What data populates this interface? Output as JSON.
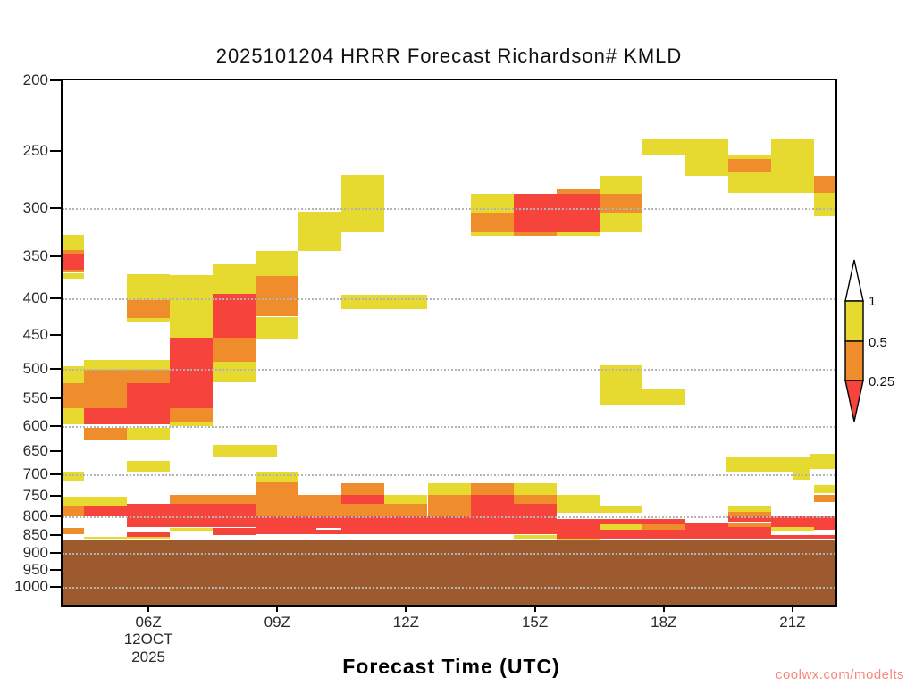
{
  "header": {
    "title": "2025101204 HRRR Forecast Richardson# KMLD"
  },
  "footer": {
    "xaxis_label": "Forecast Time (UTC)",
    "watermark": "coolwx.com/modelts"
  },
  "axes": {
    "x": {
      "range_hours_utc": [
        4,
        22
      ],
      "ticks": [
        {
          "t": 6,
          "label": "06Z"
        },
        {
          "t": 9,
          "label": "09Z"
        },
        {
          "t": 12,
          "label": "12Z"
        },
        {
          "t": 15,
          "label": "15Z"
        },
        {
          "t": 18,
          "label": "18Z"
        },
        {
          "t": 21,
          "label": "21Z"
        }
      ],
      "date_lines": [
        "12OCT",
        "2025"
      ],
      "date_under_tick": 6
    },
    "y": {
      "scale": "log",
      "units": "hPa",
      "range": [
        200,
        1060
      ],
      "tick_values": [
        200,
        250,
        300,
        350,
        400,
        450,
        500,
        550,
        600,
        650,
        700,
        750,
        800,
        850,
        900,
        950,
        1000
      ],
      "gridlines": [
        300,
        400,
        500,
        600,
        700,
        800,
        900,
        1000
      ]
    }
  },
  "colorbar": {
    "labels": [
      "1",
      "0.5",
      "0.25"
    ],
    "meaning": "Richardson number bins: white >1, yellow 0.5-1, orange 0.25-0.5, red <0.25"
  },
  "colors": {
    "yellow": "#e6d930",
    "orange": "#ef8c2c",
    "red": "#f6433c",
    "brown": "#9e5a2f",
    "white": "#ffffff",
    "grid": "#b3b3b3",
    "axis": "#000000",
    "watermark": "#f8877b"
  },
  "chart_data": {
    "type": "heatmap",
    "x_units": "forecast hour UTC (2025-10-12)",
    "y_units": "pressure hPa (log scale)",
    "value_bins": {
      "Y": "Ri 0.5-1",
      "O": "Ri 0.25-0.5",
      "R": "Ri <0.25",
      "W": "Ri >1 (white)"
    },
    "terrain": {
      "t0": 4,
      "t1": 22,
      "p0": 863,
      "p1": 1060
    },
    "cells": [
      [
        4,
        4.5,
        327,
        343,
        "Y"
      ],
      [
        4,
        4.5,
        343,
        347,
        "O"
      ],
      [
        4,
        4.5,
        347,
        365,
        "R"
      ],
      [
        4,
        4.5,
        365,
        369,
        "O"
      ],
      [
        4,
        4.5,
        369,
        376,
        "Y"
      ],
      [
        5.5,
        6.5,
        370,
        402,
        "Y"
      ],
      [
        5.5,
        6.5,
        402,
        426,
        "O"
      ],
      [
        5.5,
        6.5,
        426,
        432,
        "Y"
      ],
      [
        6.5,
        7.5,
        371,
        453,
        "Y"
      ],
      [
        6.5,
        7.5,
        453,
        568,
        "R"
      ],
      [
        6.5,
        7.5,
        568,
        592,
        "O"
      ],
      [
        6.5,
        7.5,
        592,
        600,
        "Y"
      ],
      [
        7.5,
        8.5,
        359,
        394,
        "Y"
      ],
      [
        7.5,
        8.5,
        394,
        453,
        "R"
      ],
      [
        7.5,
        8.5,
        453,
        489,
        "O"
      ],
      [
        7.5,
        8.5,
        489,
        523,
        "Y"
      ],
      [
        8.5,
        9.5,
        344,
        373,
        "Y"
      ],
      [
        8.5,
        9.5,
        373,
        424,
        "O"
      ],
      [
        8.5,
        9.5,
        424,
        456,
        "Y"
      ],
      [
        9.5,
        10.5,
        304,
        344,
        "Y"
      ],
      [
        10.5,
        11.5,
        270,
        324,
        "Y"
      ],
      [
        10.5,
        12.5,
        396,
        414,
        "Y"
      ],
      [
        4,
        4.5,
        496,
        524,
        "Y"
      ],
      [
        4,
        4.5,
        524,
        567,
        "O"
      ],
      [
        4,
        4.5,
        567,
        597,
        "Y"
      ],
      [
        4.5,
        6.5,
        486,
        502,
        "Y"
      ],
      [
        4.5,
        5.5,
        502,
        567,
        "O"
      ],
      [
        4.5,
        5.5,
        567,
        597,
        "R"
      ],
      [
        4.5,
        5.5,
        604,
        629,
        "O"
      ],
      [
        5.5,
        6.5,
        502,
        524,
        "O"
      ],
      [
        5.5,
        6.5,
        524,
        597,
        "R"
      ],
      [
        5.5,
        6.5,
        604,
        629,
        "Y"
      ],
      [
        13.5,
        14.5,
        287,
        305,
        "Y"
      ],
      [
        13.5,
        14.5,
        305,
        324,
        "O"
      ],
      [
        13.5,
        14.5,
        324,
        328,
        "Y"
      ],
      [
        14.5,
        15.5,
        287,
        324,
        "R"
      ],
      [
        14.5,
        15.5,
        324,
        328,
        "O"
      ],
      [
        15.5,
        16.5,
        283,
        287,
        "O"
      ],
      [
        15.5,
        16.5,
        287,
        324,
        "R"
      ],
      [
        15.5,
        16.5,
        324,
        328,
        "Y"
      ],
      [
        16.5,
        17.5,
        271,
        287,
        "Y"
      ],
      [
        16.5,
        17.5,
        287,
        305,
        "O"
      ],
      [
        16.5,
        17.5,
        305,
        324,
        "Y"
      ],
      [
        17.5,
        18.5,
        241,
        253,
        "Y"
      ],
      [
        18.5,
        19.5,
        241,
        271,
        "Y"
      ],
      [
        19.5,
        20.5,
        253,
        257,
        "Y"
      ],
      [
        19.5,
        20.5,
        257,
        268,
        "O"
      ],
      [
        19.5,
        20.5,
        268,
        286,
        "Y"
      ],
      [
        20.5,
        21.5,
        241,
        286,
        "Y"
      ],
      [
        21.5,
        22,
        271,
        286,
        "O"
      ],
      [
        21.5,
        22,
        286,
        308,
        "Y"
      ],
      [
        16.5,
        17.5,
        495,
        561,
        "Y"
      ],
      [
        17.5,
        18.5,
        533,
        561,
        "Y"
      ],
      [
        7.5,
        9,
        638,
        664,
        "Y"
      ],
      [
        5.5,
        6.5,
        670,
        695,
        "Y"
      ],
      [
        4,
        4.5,
        695,
        717,
        "Y"
      ],
      [
        19.45,
        21.4,
        664,
        695,
        "Y"
      ],
      [
        21.4,
        22,
        655,
        689,
        "Y"
      ],
      [
        21,
        21.4,
        689,
        713,
        "Y"
      ],
      [
        4,
        5.5,
        751,
        774,
        "Y"
      ],
      [
        4,
        4.5,
        774,
        801,
        "O"
      ],
      [
        4.5,
        5.5,
        774,
        801,
        "R"
      ],
      [
        5.5,
        6.5,
        768,
        801,
        "R"
      ],
      [
        6.5,
        8.5,
        748,
        768,
        "O"
      ],
      [
        6.5,
        8.5,
        768,
        801,
        "R"
      ],
      [
        8.5,
        9.5,
        695,
        719,
        "Y"
      ],
      [
        8.5,
        9.5,
        719,
        801,
        "O"
      ],
      [
        9.5,
        10.5,
        748,
        801,
        "O"
      ],
      [
        10.5,
        11.5,
        721,
        748,
        "O"
      ],
      [
        10.5,
        11.5,
        748,
        768,
        "R"
      ],
      [
        10.5,
        11.5,
        768,
        801,
        "O"
      ],
      [
        11.5,
        12.5,
        748,
        768,
        "Y"
      ],
      [
        11.5,
        12.5,
        768,
        801,
        "O"
      ],
      [
        12.5,
        13.5,
        721,
        748,
        "Y"
      ],
      [
        12.5,
        13.5,
        748,
        801,
        "O"
      ],
      [
        13.5,
        14.5,
        721,
        748,
        "O"
      ],
      [
        13.5,
        14.5,
        748,
        848,
        "R"
      ],
      [
        14.5,
        15.5,
        721,
        748,
        "Y"
      ],
      [
        14.5,
        15.5,
        748,
        768,
        "O"
      ],
      [
        14.5,
        15.5,
        768,
        848,
        "R"
      ],
      [
        14.5,
        15.5,
        848,
        858,
        "Y"
      ],
      [
        15.5,
        16.5,
        748,
        792,
        "Y"
      ],
      [
        15.5,
        16.5,
        806,
        858,
        "R"
      ],
      [
        15.5,
        16.5,
        858,
        863,
        "Y"
      ],
      [
        16.5,
        17.5,
        774,
        792,
        "Y"
      ],
      [
        16.5,
        17.5,
        806,
        820,
        "R"
      ],
      [
        16.5,
        17.5,
        820,
        834,
        "Y"
      ],
      [
        16.5,
        17.5,
        834,
        858,
        "R"
      ],
      [
        17.5,
        18.5,
        806,
        820,
        "R"
      ],
      [
        17.5,
        18.5,
        820,
        834,
        "O"
      ],
      [
        17.5,
        18.5,
        834,
        858,
        "R"
      ],
      [
        18.5,
        19.5,
        815,
        858,
        "R"
      ],
      [
        19.5,
        20.5,
        774,
        788,
        "Y"
      ],
      [
        19.5,
        20.5,
        788,
        801,
        "O"
      ],
      [
        19.5,
        20.5,
        801,
        815,
        "R"
      ],
      [
        19.5,
        20.5,
        815,
        827,
        "O"
      ],
      [
        19.5,
        20.5,
        827,
        858,
        "R"
      ],
      [
        20.5,
        21.5,
        801,
        827,
        "R"
      ],
      [
        20.5,
        21.5,
        827,
        841,
        "Y"
      ],
      [
        20.5,
        21.5,
        848,
        858,
        "R"
      ],
      [
        21.5,
        22,
        725,
        744,
        "Y"
      ],
      [
        21.5,
        22,
        748,
        765,
        "O"
      ],
      [
        21.5,
        22,
        801,
        834,
        "R"
      ],
      [
        21.5,
        22,
        848,
        858,
        "R"
      ],
      [
        5.5,
        8.5,
        801,
        829,
        "R"
      ],
      [
        6.5,
        7.5,
        829,
        838,
        "Y"
      ],
      [
        7.5,
        8.5,
        829,
        848,
        "R"
      ],
      [
        8.5,
        14.5,
        801,
        848,
        "R"
      ],
      [
        4,
        4.5,
        831,
        848,
        "O"
      ],
      [
        5.5,
        6.5,
        841,
        853,
        "R"
      ],
      [
        4.5,
        6.5,
        853,
        858,
        "Y"
      ],
      [
        9.9,
        10.5,
        829,
        834,
        "W"
      ],
      [
        20.5,
        21.5,
        841,
        848,
        "W"
      ],
      [
        21.5,
        22,
        834,
        848,
        "W"
      ]
    ]
  }
}
